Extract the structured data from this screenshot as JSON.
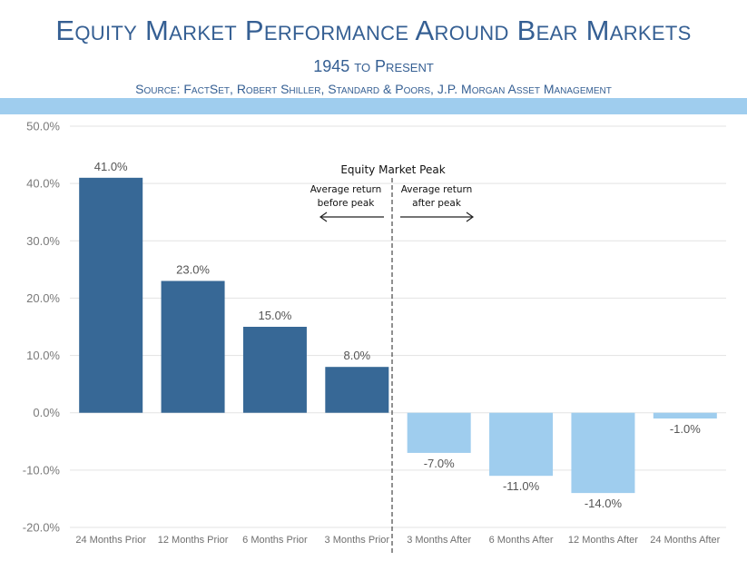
{
  "header": {
    "title": "Equity Market Performance Around Bear Markets",
    "subtitle": "1945 to Present",
    "source": "Source: FactSet, Robert Shiller, Standard & Poors, J.P. Morgan Asset Management"
  },
  "colors": {
    "before_peak": "#376896",
    "after_peak": "#9fcdee",
    "title_text": "#355f93",
    "band": "#9fcdee"
  },
  "annotations": {
    "peak_label": "Equity Market Peak",
    "before_line1": "Average return",
    "before_line2": "before peak",
    "after_line1": "Average return",
    "after_line2": "after peak"
  },
  "chart_data": {
    "type": "bar",
    "categories": [
      "24 Months Prior",
      "12 Months Prior",
      "6 Months Prior",
      "3 Months Prior",
      "3 Months After",
      "6 Months After",
      "12 Months After",
      "24 Months After"
    ],
    "values": [
      41.0,
      23.0,
      15.0,
      8.0,
      -7.0,
      -11.0,
      -14.0,
      -1.0
    ],
    "value_labels": [
      "41.0%",
      "23.0%",
      "15.0%",
      "8.0%",
      "-7.0%",
      "-11.0%",
      "-14.0%",
      "-1.0%"
    ],
    "y_ticks": [
      50,
      40,
      30,
      20,
      10,
      0,
      -10,
      -20
    ],
    "y_tick_labels": [
      "50.0%",
      "40.0%",
      "30.0%",
      "20.0%",
      "10.0%",
      "0.0%",
      "-10.0%",
      "-20.0%"
    ],
    "ylim": [
      -20,
      50
    ],
    "grid": true,
    "title": "Equity Market Performance Around Bear Markets",
    "xlabel": "",
    "ylabel": ""
  }
}
